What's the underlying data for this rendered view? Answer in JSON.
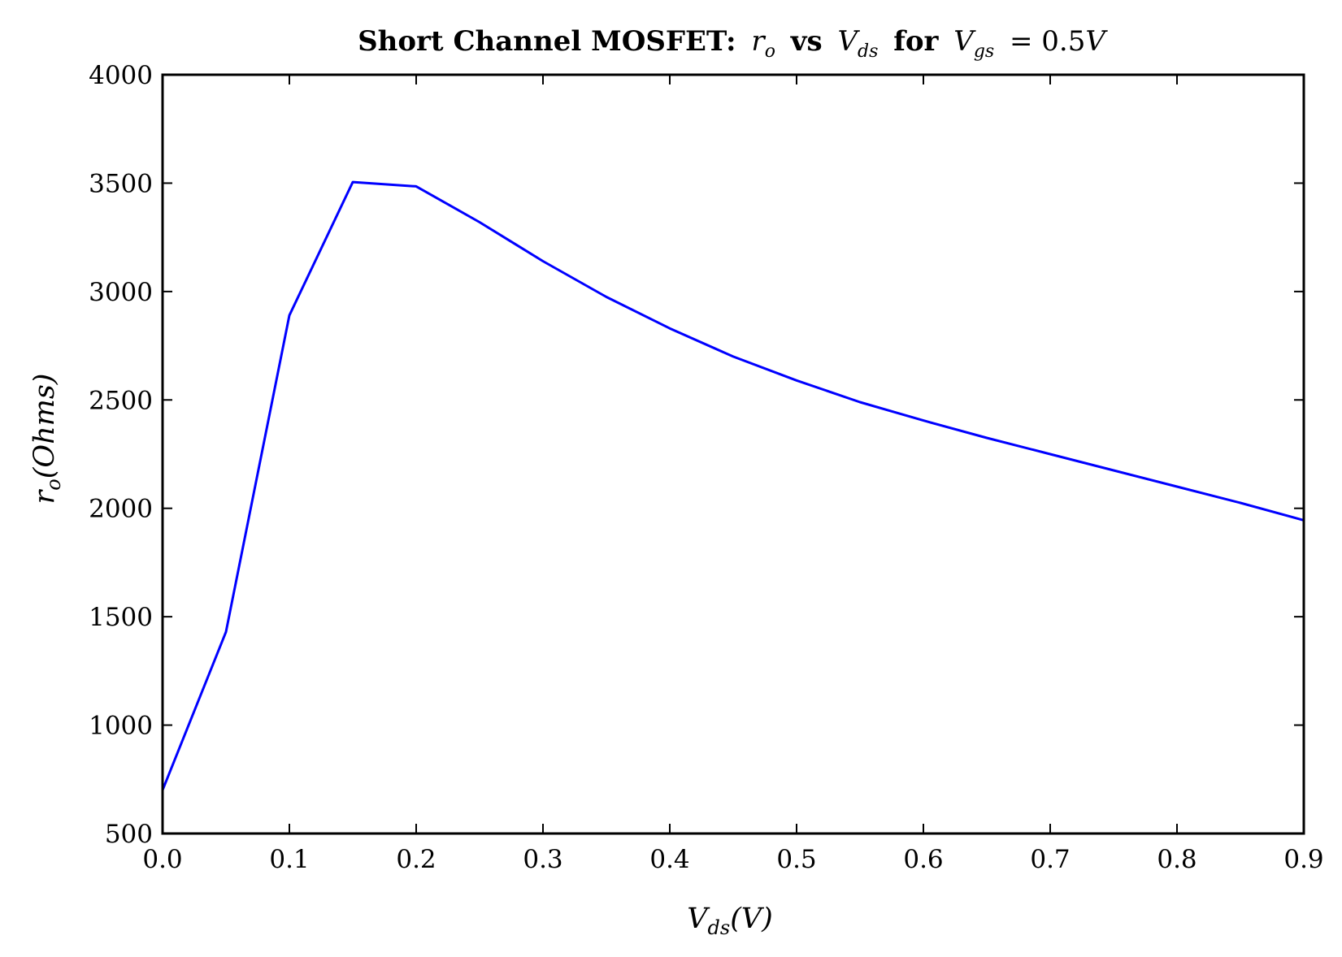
{
  "chart_data": {
    "type": "line",
    "title": {
      "prefix": "Short Channel MOSFET:",
      "r": "r",
      "r_sub": "o",
      "vs": "vs",
      "v": "V",
      "v_sub": "ds",
      "for": "for",
      "vg": "V",
      "vg_sub": "gs",
      "eq": "= 0.5",
      "unit": "V"
    },
    "xlabel": {
      "sym": "V",
      "sub": "ds",
      "unit": "(V)"
    },
    "ylabel": {
      "sym": "r",
      "sub": "o",
      "unit": "(Ohms)"
    },
    "xlim": [
      0.0,
      0.9
    ],
    "ylim": [
      500,
      4000
    ],
    "x_ticks": [
      0.0,
      0.1,
      0.2,
      0.3,
      0.4,
      0.5,
      0.6,
      0.7,
      0.8,
      0.9
    ],
    "x_tick_labels": [
      "0.0",
      "0.1",
      "0.2",
      "0.3",
      "0.4",
      "0.5",
      "0.6",
      "0.7",
      "0.8",
      "0.9"
    ],
    "y_ticks": [
      500,
      1000,
      1500,
      2000,
      2500,
      3000,
      3500,
      4000
    ],
    "y_tick_labels": [
      "500",
      "1000",
      "1500",
      "2000",
      "2500",
      "3000",
      "3500",
      "4000"
    ],
    "grid": false,
    "series": [
      {
        "color": "#0000ff",
        "x": [
          0.0,
          0.05,
          0.1,
          0.15,
          0.2,
          0.25,
          0.3,
          0.35,
          0.4,
          0.45,
          0.5,
          0.55,
          0.6,
          0.65,
          0.7,
          0.75,
          0.8,
          0.85,
          0.9
        ],
        "y": [
          700,
          1430,
          2890,
          3505,
          3485,
          3320,
          3140,
          2975,
          2830,
          2700,
          2590,
          2490,
          2405,
          2325,
          2250,
          2175,
          2100,
          2025,
          1945
        ]
      }
    ]
  }
}
